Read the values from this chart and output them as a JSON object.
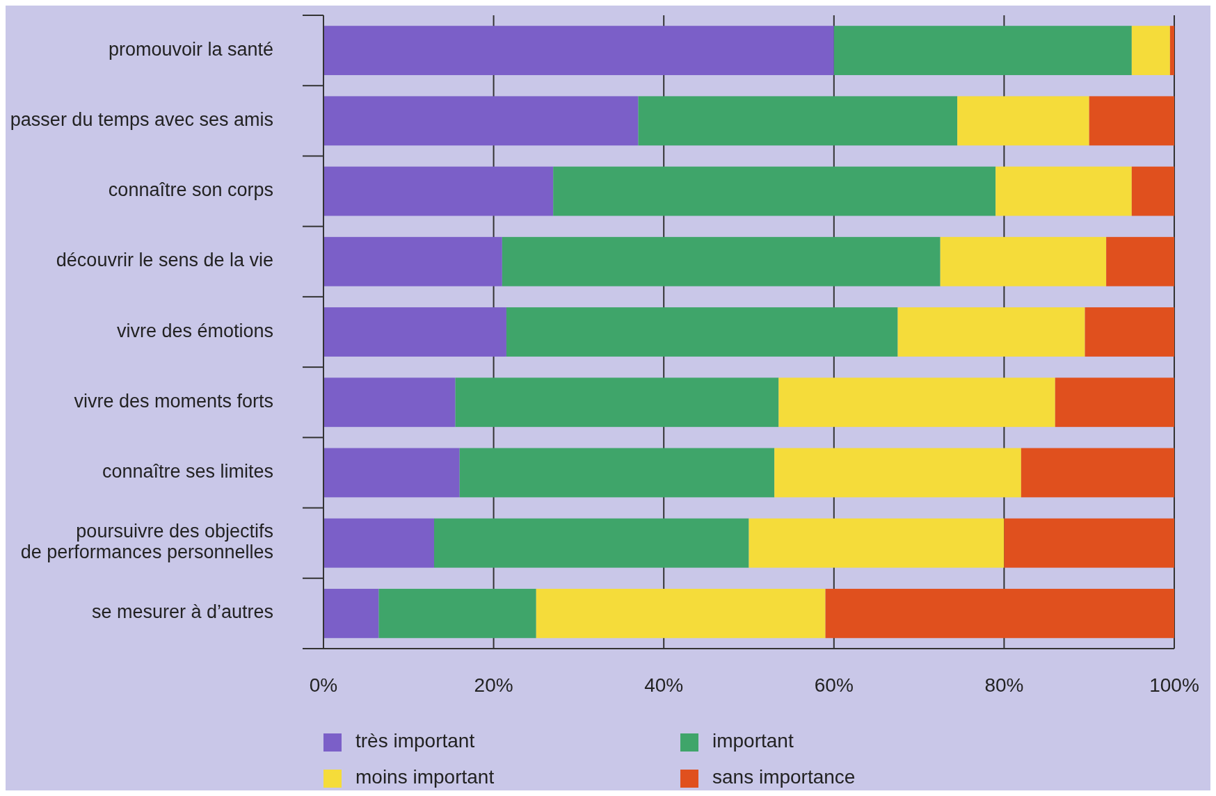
{
  "chart_data": {
    "type": "bar",
    "orientation": "horizontal",
    "stacked": true,
    "categories": [
      "promouvoir la santé",
      "passer du temps avec ses amis",
      "connaître son corps",
      "découvrir le sens de la vie",
      "vivre des émotions",
      "vivre des moments forts",
      "connaître ses limites",
      "poursuivre des objectifs\nde performances personnelles",
      "se mesurer à d’autres"
    ],
    "series": [
      {
        "name": "très important",
        "color": "#7b5fc8",
        "values": [
          60,
          37,
          27,
          21,
          21.5,
          15.5,
          16,
          13,
          6.5
        ]
      },
      {
        "name": "important",
        "color": "#3fa56a",
        "values": [
          35,
          37.5,
          52,
          51.5,
          46,
          38,
          37,
          37,
          18.5
        ]
      },
      {
        "name": "moins important",
        "color": "#f5dc3a",
        "values": [
          4.5,
          15.5,
          16,
          19.5,
          22,
          32.5,
          29,
          30,
          34
        ]
      },
      {
        "name": "sans importance",
        "color": "#e0501e",
        "values": [
          0.5,
          10,
          5,
          8,
          10.5,
          14,
          18,
          20,
          41
        ]
      }
    ],
    "xlim": [
      0,
      100
    ],
    "xticks": [
      {
        "value": 0,
        "label": "0%"
      },
      {
        "value": 20,
        "label": "20%"
      },
      {
        "value": 40,
        "label": "40%"
      },
      {
        "value": 60,
        "label": "60%"
      },
      {
        "value": 80,
        "label": "80%"
      },
      {
        "value": 100,
        "label": "100%"
      }
    ],
    "grid": "x",
    "legend": "bottom"
  }
}
